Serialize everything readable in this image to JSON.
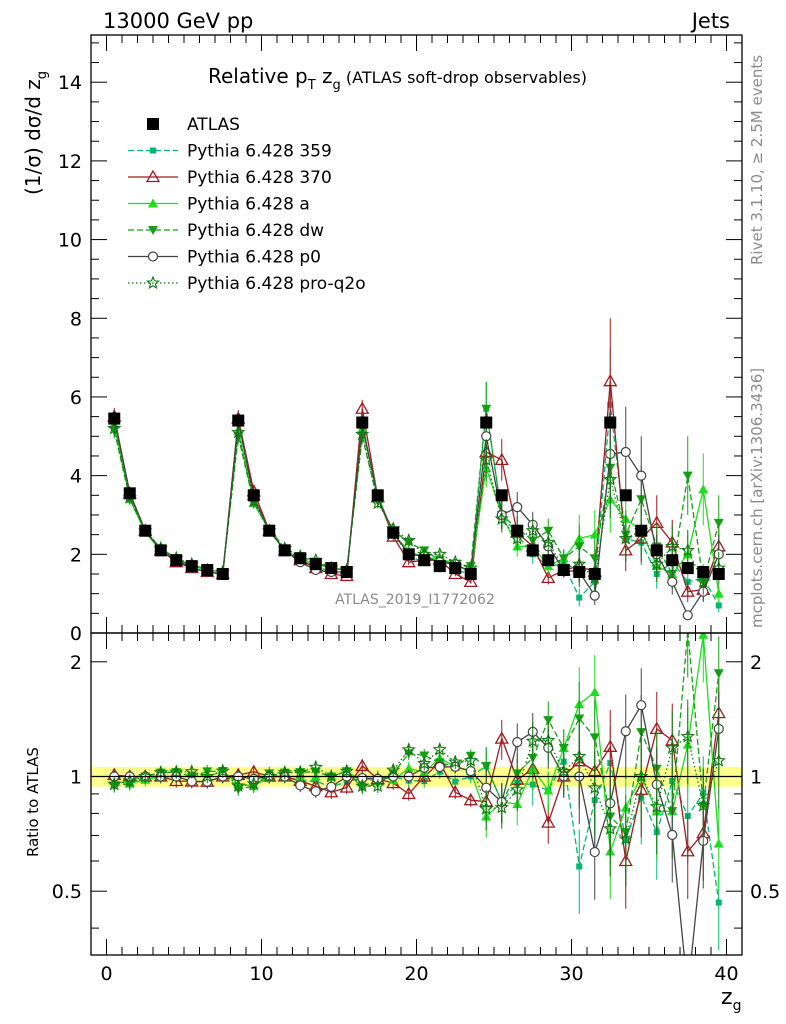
{
  "header": {
    "left": "13000 GeV pp",
    "right": "Jets"
  },
  "side": {
    "rivet": "Rivet 3.1.10, ≥ 2.5M events",
    "mcplots": "mcplots.cern.ch [arXiv:1306.3436]"
  },
  "chart_data": [
    {
      "type": "line",
      "title": "Relative p_T z_g (ATLAS soft-drop observables)",
      "title_parts": {
        "main": "Relative p",
        "sub1": "T",
        "mid": " z",
        "sub2": "g",
        "rest": " (ATLAS soft-drop observables)"
      },
      "ylabel": "(1/σ) dσ/d z_g",
      "ylabel_parts": {
        "main": "(1/σ) dσ/d z",
        "sub": "g"
      },
      "xlabel": "z_g",
      "xlabel_parts": {
        "main": "z",
        "sub": "g"
      },
      "watermark": "ATLAS_2019_I1772062",
      "xlim": [
        -1,
        41
      ],
      "ylim": [
        0,
        15.2
      ],
      "yticks": [
        0,
        2,
        4,
        6,
        8,
        10,
        12,
        14
      ],
      "ytick_labels": [
        "0",
        "2",
        "4",
        "6",
        "8",
        "10",
        "12",
        "14"
      ],
      "legend_position": "top-left",
      "x": [
        0.5,
        1.5,
        2.5,
        3.5,
        4.5,
        5.5,
        6.5,
        7.5,
        8.5,
        9.5,
        10.5,
        11.5,
        12.5,
        13.5,
        14.5,
        15.5,
        16.5,
        17.5,
        18.5,
        19.5,
        20.5,
        21.5,
        22.5,
        23.5,
        24.5,
        25.5,
        26.5,
        27.5,
        28.5,
        29.5,
        30.5,
        31.5,
        32.5,
        33.5,
        34.5,
        35.5,
        36.5,
        37.5,
        38.5,
        39.5
      ],
      "series": [
        {
          "name": "ATLAS",
          "color": "#000000",
          "marker": "filled-square",
          "line": "none",
          "values": [
            5.45,
            3.55,
            2.6,
            2.1,
            1.85,
            1.7,
            1.6,
            1.5,
            5.4,
            3.5,
            2.6,
            2.1,
            1.9,
            1.75,
            1.65,
            1.55,
            5.35,
            3.5,
            2.55,
            2.0,
            1.85,
            1.7,
            1.65,
            1.5,
            5.35,
            3.5,
            2.6,
            2.1,
            1.85,
            1.6,
            1.55,
            1.5,
            5.35,
            3.5,
            2.6,
            2.1,
            1.85,
            1.65,
            1.55,
            1.5
          ]
        },
        {
          "name": "Pythia 6.428 359",
          "color": "#00b872",
          "marker": "small-square",
          "line": "dashed",
          "values": [
            5.4,
            3.5,
            2.6,
            2.1,
            1.85,
            1.65,
            1.55,
            1.5,
            5.35,
            3.45,
            2.6,
            2.1,
            1.85,
            1.7,
            1.55,
            1.5,
            5.3,
            3.4,
            2.55,
            1.95,
            1.8,
            1.75,
            1.6,
            1.5,
            5.7,
            3.0,
            2.5,
            2.0,
            1.7,
            1.75,
            0.9,
            1.3,
            5.8,
            2.4,
            2.3,
            1.5,
            1.8,
            1.3,
            1.4,
            0.7
          ]
        },
        {
          "name": "Pythia 6.428 370",
          "color": "#a01b20",
          "marker": "open-triangle-up",
          "line": "solid",
          "values": [
            5.5,
            3.55,
            2.6,
            2.1,
            1.8,
            1.65,
            1.55,
            1.5,
            5.45,
            3.6,
            2.6,
            2.1,
            1.85,
            1.65,
            1.5,
            1.45,
            5.7,
            3.45,
            2.45,
            1.8,
            1.85,
            1.85,
            1.5,
            1.3,
            4.6,
            4.4,
            2.55,
            2.2,
            1.4,
            1.6,
            1.7,
            1.55,
            6.4,
            2.1,
            2.4,
            2.8,
            2.3,
            1.05,
            1.1,
            2.2
          ]
        },
        {
          "name": "Pythia 6.428 a",
          "color": "#1edc1e",
          "marker": "filled-triangle-up",
          "line": "solid",
          "values": [
            5.3,
            3.4,
            2.55,
            2.1,
            1.85,
            1.7,
            1.6,
            1.55,
            5.15,
            3.3,
            2.6,
            2.1,
            1.9,
            1.75,
            1.65,
            1.6,
            5.2,
            3.5,
            2.5,
            2.1,
            1.9,
            1.9,
            1.75,
            1.55,
            4.2,
            3.0,
            2.2,
            2.2,
            1.7,
            1.9,
            2.4,
            2.5,
            3.4,
            2.9,
            2.6,
            1.7,
            1.5,
            2.0,
            3.65,
            1.0
          ]
        },
        {
          "name": "Pythia 6.428 dw",
          "color": "#14a014",
          "marker": "filled-triangle-down",
          "line": "dashed",
          "values": [
            5.15,
            3.4,
            2.6,
            2.15,
            1.9,
            1.7,
            1.65,
            1.55,
            5.0,
            3.3,
            2.65,
            2.15,
            1.95,
            1.8,
            1.65,
            1.6,
            5.0,
            3.35,
            2.6,
            2.3,
            2.1,
            1.85,
            1.75,
            1.7,
            5.7,
            3.0,
            2.65,
            2.35,
            2.6,
            1.9,
            2.2,
            1.9,
            4.2,
            2.5,
            3.4,
            2.2,
            1.5,
            4.0,
            1.3,
            2.8
          ]
        },
        {
          "name": "Pythia 6.428 p0",
          "color": "#444444",
          "marker": "open-circle",
          "line": "solid",
          "values": [
            5.45,
            3.55,
            2.6,
            2.1,
            1.85,
            1.65,
            1.55,
            1.5,
            5.4,
            3.45,
            2.6,
            2.1,
            1.8,
            1.6,
            1.55,
            1.55,
            5.3,
            3.45,
            2.55,
            2.0,
            1.95,
            1.8,
            1.75,
            1.55,
            5.0,
            3.0,
            3.2,
            2.75,
            2.2,
            1.6,
            1.55,
            0.95,
            4.55,
            4.6,
            4.0,
            2.0,
            1.3,
            0.45,
            1.05,
            2.0
          ]
        },
        {
          "name": "Pythia 6.428 pro-q2o",
          "color": "#0e7a0e",
          "marker": "open-star",
          "line": "dotted",
          "values": [
            5.2,
            3.45,
            2.6,
            2.15,
            1.9,
            1.75,
            1.6,
            1.55,
            5.1,
            3.35,
            2.6,
            2.15,
            1.95,
            1.85,
            1.65,
            1.6,
            5.05,
            3.3,
            2.65,
            2.35,
            2.0,
            2.0,
            1.8,
            1.65,
            4.4,
            2.9,
            2.4,
            2.6,
            2.3,
            1.65,
            1.75,
            1.4,
            3.9,
            2.4,
            2.6,
            1.75,
            2.2,
            2.1,
            1.3,
            1.65
          ]
        }
      ]
    },
    {
      "type": "line",
      "ylabel": "Ratio to ATLAS",
      "xlabel": "z_g",
      "ylim": [
        0.34,
        2.38
      ],
      "yscale": "log",
      "yticks": [
        0.5,
        1,
        2
      ],
      "ytick_labels": [
        "0.5",
        "1",
        "2"
      ],
      "xticks": [
        0,
        10,
        20,
        30,
        40
      ],
      "xtick_labels": [
        "0",
        "10",
        "20",
        "30",
        "40"
      ],
      "reference_band_color": "#ffff66"
    }
  ]
}
